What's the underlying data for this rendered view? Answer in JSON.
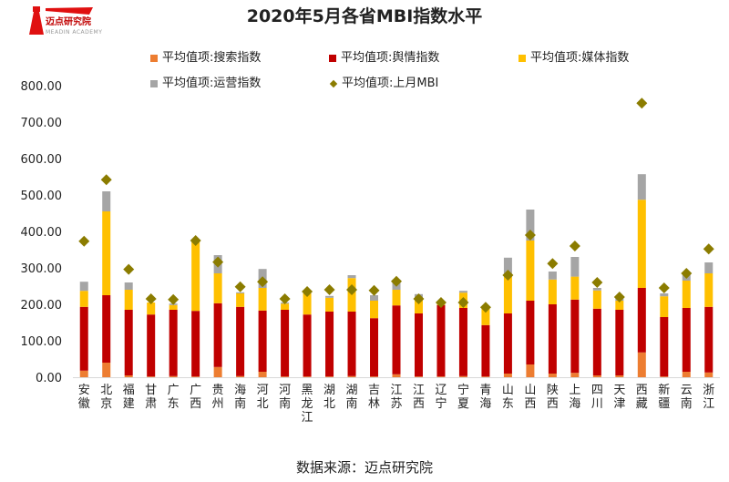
{
  "header": {
    "logo_text": "迈点研究院",
    "logo_subtext": "MEADIN ACADEMY"
  },
  "footer": {
    "source": "数据来源：迈点研究院"
  },
  "colors": {
    "search": "#ed7d31",
    "opinion": "#c00000",
    "media": "#ffc000",
    "operation": "#a5a5a5",
    "mbi": "#8b7c00"
  },
  "chart_data": {
    "type": "bar",
    "stacked": true,
    "title": "2020年5月各省MBI指数水平",
    "xlabel": "",
    "ylabel": "",
    "ylim": [
      0,
      800
    ],
    "yticks": [
      "0.00",
      "100.00",
      "200.00",
      "300.00",
      "400.00",
      "500.00",
      "600.00",
      "700.00",
      "800.00"
    ],
    "grid": false,
    "legend_position": "top",
    "categories": [
      "安徽",
      "北京",
      "福建",
      "甘肃",
      "广东",
      "广西",
      "贵州",
      "海南",
      "河北",
      "河南",
      "黑龙江",
      "湖北",
      "湖南",
      "吉林",
      "江苏",
      "江西",
      "辽宁",
      "宁夏",
      "青海",
      "山东",
      "山西",
      "陕西",
      "上海",
      "四川",
      "天津",
      "西藏",
      "新疆",
      "云南",
      "浙江"
    ],
    "series": [
      {
        "name": "平均值项:搜索指数",
        "type": "bar",
        "key": "search",
        "values": [
          18,
          40,
          5,
          2,
          3,
          2,
          28,
          3,
          15,
          2,
          2,
          2,
          3,
          2,
          8,
          2,
          2,
          3,
          2,
          10,
          35,
          10,
          12,
          5,
          5,
          68,
          2,
          15,
          13
        ]
      },
      {
        "name": "平均值项:舆情指数",
        "type": "bar",
        "key": "opinion",
        "values": [
          175,
          185,
          180,
          170,
          182,
          180,
          175,
          190,
          168,
          183,
          170,
          178,
          177,
          160,
          189,
          173,
          196,
          187,
          141,
          165,
          175,
          190,
          201,
          183,
          180,
          177,
          163,
          175,
          180
        ]
      },
      {
        "name": "平均值项:媒体指数",
        "type": "bar",
        "key": "media",
        "values": [
          44,
          230,
          55,
          33,
          13,
          193,
          82,
          37,
          62,
          17,
          58,
          38,
          92,
          48,
          43,
          40,
          7,
          42,
          49,
          103,
          165,
          68,
          63,
          50,
          25,
          242,
          57,
          75,
          92
        ]
      },
      {
        "name": "平均值项:运营指数",
        "type": "bar",
        "key": "operation",
        "values": [
          25,
          55,
          20,
          0,
          4,
          0,
          50,
          3,
          52,
          3,
          0,
          5,
          8,
          15,
          28,
          13,
          2,
          5,
          3,
          50,
          85,
          22,
          54,
          7,
          8,
          70,
          8,
          20,
          30
        ]
      },
      {
        "name": "平均值项:上月MBI",
        "type": "scatter",
        "marker": "diamond",
        "key": "mbi",
        "values": [
          373,
          542,
          296,
          215,
          213,
          375,
          316,
          248,
          262,
          215,
          235,
          240,
          240,
          238,
          263,
          215,
          205,
          205,
          192,
          280,
          390,
          312,
          360,
          260,
          220,
          752,
          245,
          285,
          352
        ]
      }
    ]
  }
}
